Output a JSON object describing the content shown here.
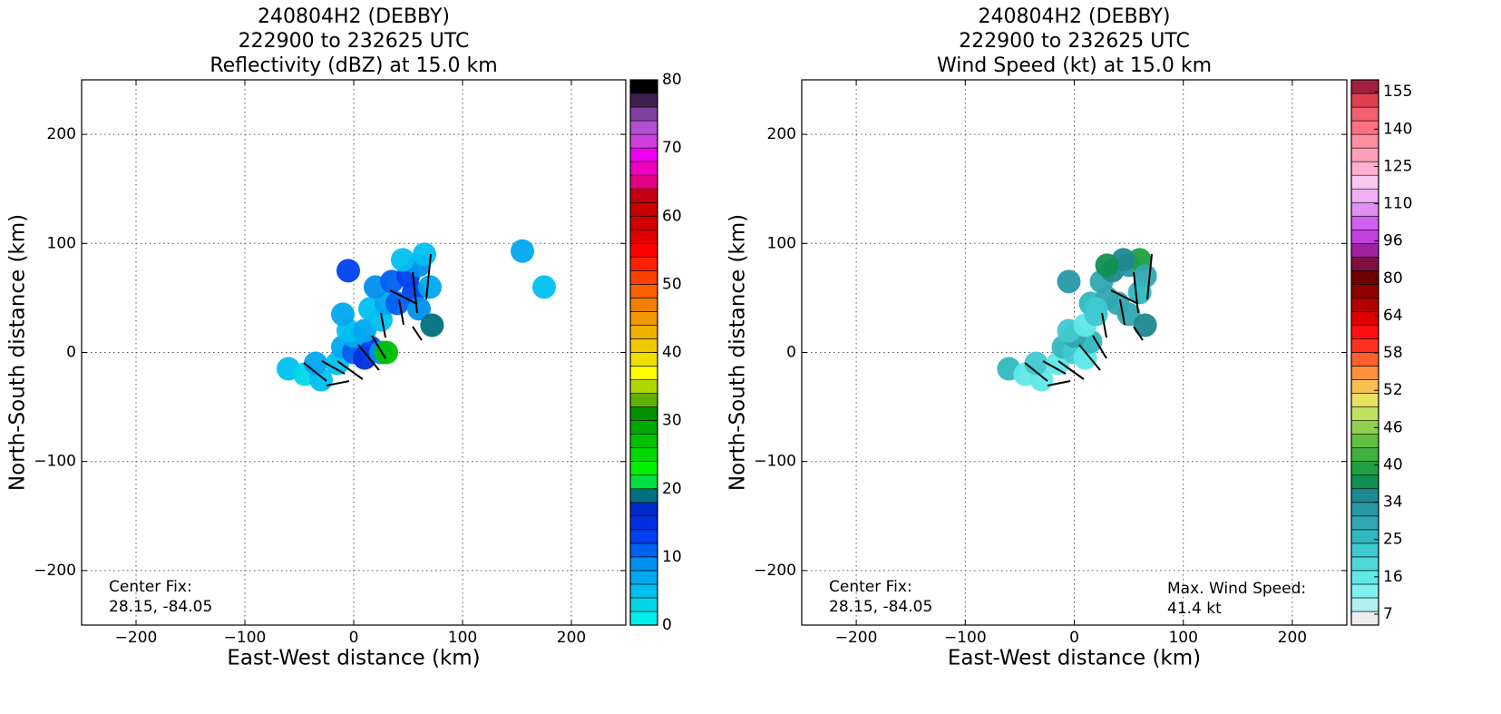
{
  "chart_data": [
    {
      "type": "radar",
      "title": [
        "240804H2 (DEBBY)",
        "222900 to 232625 UTC",
        "Reflectivity (dBZ) at 15.0 km"
      ],
      "x_label": "East-West distance (km)",
      "y_label": "North-South distance (km)",
      "xlim": [
        -250,
        250
      ],
      "ylim": [
        -250,
        250
      ],
      "xticks": [
        {
          "value": -200,
          "label": "−200"
        },
        {
          "value": -100,
          "label": "−100"
        },
        0,
        100,
        200
      ],
      "yticks": [
        {
          "value": -200,
          "label": "−200"
        },
        {
          "value": -100,
          "label": "−100"
        },
        0,
        100,
        200
      ],
      "grid": true,
      "center_fix": [
        "Center Fix:",
        "28.15, -84.05"
      ],
      "x": [
        -60,
        -45,
        -30,
        -35,
        -15,
        -10,
        0,
        10,
        15,
        25,
        30,
        0,
        -5,
        10,
        25,
        15,
        30,
        20,
        35,
        50,
        60,
        45,
        65,
        55,
        70,
        40,
        60,
        72,
        -5,
        -10,
        155,
        175
      ],
      "y": [
        -15,
        -20,
        -25,
        -10,
        -10,
        5,
        0,
        -5,
        5,
        0,
        0,
        15,
        20,
        20,
        30,
        40,
        45,
        60,
        65,
        70,
        80,
        85,
        90,
        55,
        60,
        45,
        40,
        25,
        75,
        35,
        93,
        60
      ],
      "values": [
        4,
        2,
        4,
        6,
        4,
        6,
        10,
        14,
        12,
        8,
        26,
        6,
        4,
        6,
        4,
        4,
        6,
        8,
        10,
        12,
        8,
        4,
        4,
        12,
        6,
        10,
        8,
        18,
        12,
        6,
        6,
        4
      ],
      "colorbar": {
        "lim": [
          0,
          80
        ],
        "ticks": [
          0,
          10,
          20,
          30,
          40,
          50,
          60,
          70,
          80
        ],
        "colors": [
          "#00eeee",
          "#00d8e8",
          "#00c0f0",
          "#00a8f0",
          "#0090f0",
          "#0060f0",
          "#0040f0",
          "#0030e0",
          "#0028c8",
          "#007080",
          "#00e040",
          "#00f000",
          "#00d800",
          "#00c000",
          "#00a800",
          "#009000",
          "#60b000",
          "#b0d800",
          "#ffff00",
          "#f0e000",
          "#f0c800",
          "#f0b000",
          "#f09800",
          "#f08000",
          "#ff6000",
          "#ff4000",
          "#ff2000",
          "#ff0000",
          "#e00000",
          "#d00000",
          "#c80000",
          "#c00010",
          "#e00080",
          "#f000c0",
          "#f000f0",
          "#d040e0",
          "#b050d0",
          "#8040a0",
          "#402050",
          "#000000"
        ]
      }
    },
    {
      "type": "radar",
      "title": [
        "240804H2 (DEBBY)",
        "222900 to 232625 UTC",
        "Wind Speed (kt) at 15.0 km"
      ],
      "x_label": "East-West distance (km)",
      "y_label": "North-South distance (km)",
      "xlim": [
        -250,
        250
      ],
      "ylim": [
        -250,
        250
      ],
      "xticks": [
        {
          "value": -200,
          "label": "−200"
        },
        {
          "value": -100,
          "label": "−100"
        },
        0,
        100,
        200
      ],
      "yticks": [
        {
          "value": -200,
          "label": "−200"
        },
        {
          "value": -100,
          "label": "−100"
        },
        0,
        100,
        200
      ],
      "grid": true,
      "center_fix": [
        "Center Fix:",
        "28.15, -84.05"
      ],
      "max_wind": [
        "Max. Wind Speed:",
        "41.4 kt"
      ],
      "x": [
        -60,
        -45,
        -30,
        -35,
        -15,
        -10,
        0,
        10,
        15,
        0,
        -5,
        10,
        20,
        15,
        30,
        25,
        35,
        50,
        60,
        45,
        65,
        60,
        40,
        50,
        30,
        -5,
        65,
        20
      ],
      "y": [
        -15,
        -20,
        -25,
        -10,
        -10,
        5,
        0,
        -5,
        10,
        15,
        20,
        25,
        35,
        45,
        50,
        65,
        75,
        80,
        85,
        85,
        70,
        55,
        45,
        35,
        80,
        65,
        25,
        40
      ],
      "values": [
        25,
        16,
        16,
        22,
        16,
        25,
        22,
        16,
        25,
        28,
        22,
        16,
        22,
        25,
        28,
        30,
        34,
        32,
        40,
        34,
        28,
        25,
        30,
        28,
        38,
        32,
        34,
        22
      ],
      "colorbar": {
        "ticks": [
          7,
          16,
          25,
          34,
          40,
          46,
          52,
          58,
          64,
          80,
          96,
          110,
          125,
          140,
          155
        ],
        "colors": [
          "#eeeeee",
          "#b0f0f0",
          "#80f0f0",
          "#60e8e8",
          "#50d8d8",
          "#40c8d0",
          "#30b8c0",
          "#30a8b0",
          "#2898a8",
          "#208890",
          "#109050",
          "#20a040",
          "#40b040",
          "#60c040",
          "#90d050",
          "#c0e060",
          "#e8e060",
          "#f8c050",
          "#ff9040",
          "#ff6030",
          "#ff3020",
          "#ff1010",
          "#e00000",
          "#b00000",
          "#900000",
          "#700000",
          "#801040",
          "#a020a0",
          "#c040e0",
          "#d060f0",
          "#e090f0",
          "#f0b0f0",
          "#f8c8f0",
          "#ffb0d0",
          "#ffa0b8",
          "#ff90a0",
          "#ff7080",
          "#f06070",
          "#e04050",
          "#a02040"
        ]
      }
    }
  ]
}
